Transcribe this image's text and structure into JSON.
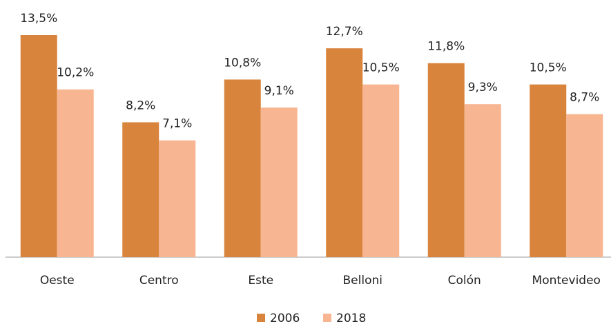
{
  "chart_data": {
    "type": "bar",
    "categories": [
      "Oeste",
      "Centro",
      "Este",
      "Belloni",
      "Colón",
      "Montevideo"
    ],
    "series": [
      {
        "name": "2006",
        "color": "#d9843c",
        "values": [
          13.5,
          8.2,
          10.8,
          12.7,
          11.8,
          10.5
        ],
        "value_labels": [
          "13,5%",
          "8,2%",
          "10,8%",
          "12,7%",
          "11,8%",
          "10,5%"
        ]
      },
      {
        "name": "2018",
        "color": "#f8b592",
        "values": [
          10.2,
          7.1,
          9.1,
          10.5,
          9.3,
          8.7
        ],
        "value_labels": [
          "10,2%",
          "7,1%",
          "9,1%",
          "10,5%",
          "9,3%",
          "8,7%"
        ]
      }
    ],
    "legend": "bottom"
  }
}
